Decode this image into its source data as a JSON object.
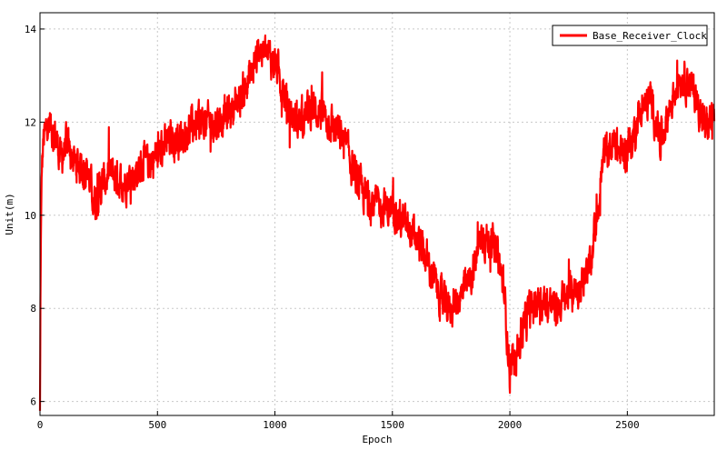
{
  "chart_data": {
    "type": "line",
    "title": "",
    "xlabel": "Epoch",
    "ylabel": "Unit(m)",
    "xlim": [
      0,
      2870
    ],
    "ylim": [
      5.7,
      14.35
    ],
    "xticks": [
      0,
      500,
      1000,
      1500,
      2000,
      2500
    ],
    "yticks": [
      6,
      8,
      10,
      12,
      14
    ],
    "grid": true,
    "legend_position": "top-right",
    "series": [
      {
        "name": "Base_Receiver_Clock",
        "color": "#ff0000",
        "keypoints": [
          [
            0,
            5.8
          ],
          [
            3,
            9.0
          ],
          [
            8,
            11.0
          ],
          [
            15,
            11.6
          ],
          [
            30,
            11.9
          ],
          [
            60,
            11.8
          ],
          [
            90,
            11.2
          ],
          [
            110,
            11.5
          ],
          [
            150,
            11.1
          ],
          [
            200,
            11.0
          ],
          [
            230,
            10.3
          ],
          [
            260,
            10.6
          ],
          [
            300,
            10.9
          ],
          [
            350,
            10.7
          ],
          [
            400,
            10.9
          ],
          [
            450,
            11.1
          ],
          [
            500,
            11.3
          ],
          [
            550,
            11.6
          ],
          [
            600,
            11.7
          ],
          [
            650,
            11.9
          ],
          [
            700,
            12.0
          ],
          [
            750,
            12.0
          ],
          [
            800,
            12.2
          ],
          [
            850,
            12.5
          ],
          [
            900,
            13.0
          ],
          [
            930,
            13.6
          ],
          [
            950,
            13.5
          ],
          [
            1000,
            13.3
          ],
          [
            1030,
            12.8
          ],
          [
            1060,
            12.2
          ],
          [
            1100,
            12.0
          ],
          [
            1150,
            12.3
          ],
          [
            1200,
            12.2
          ],
          [
            1250,
            11.9
          ],
          [
            1300,
            11.5
          ],
          [
            1330,
            11.0
          ],
          [
            1360,
            10.6
          ],
          [
            1400,
            10.3
          ],
          [
            1450,
            10.2
          ],
          [
            1500,
            10.1
          ],
          [
            1550,
            9.8
          ],
          [
            1600,
            9.5
          ],
          [
            1650,
            9.0
          ],
          [
            1700,
            8.3
          ],
          [
            1730,
            8.0
          ],
          [
            1760,
            8.1
          ],
          [
            1800,
            8.3
          ],
          [
            1850,
            8.9
          ],
          [
            1880,
            9.6
          ],
          [
            1920,
            9.4
          ],
          [
            1950,
            9.1
          ],
          [
            1975,
            8.4
          ],
          [
            2000,
            6.6
          ],
          [
            2015,
            6.9
          ],
          [
            2040,
            7.3
          ],
          [
            2080,
            7.9
          ],
          [
            2120,
            8.2
          ],
          [
            2160,
            8.1
          ],
          [
            2200,
            8.0
          ],
          [
            2250,
            8.3
          ],
          [
            2300,
            8.5
          ],
          [
            2340,
            8.8
          ],
          [
            2370,
            10.0
          ],
          [
            2400,
            11.3
          ],
          [
            2440,
            11.5
          ],
          [
            2480,
            11.3
          ],
          [
            2520,
            11.6
          ],
          [
            2550,
            12.2
          ],
          [
            2600,
            12.5
          ],
          [
            2640,
            11.6
          ],
          [
            2680,
            12.3
          ],
          [
            2720,
            13.0
          ],
          [
            2760,
            12.9
          ],
          [
            2800,
            12.4
          ],
          [
            2830,
            11.9
          ],
          [
            2870,
            12.1
          ]
        ],
        "noise_amplitude": 0.45,
        "n_points": 2870
      }
    ]
  }
}
